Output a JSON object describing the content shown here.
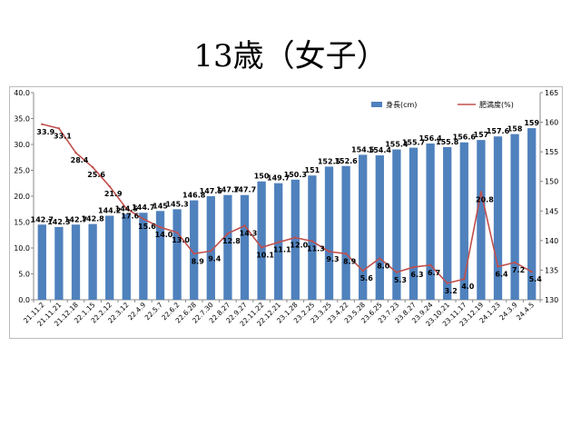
{
  "title": "13歳（女子）",
  "chart_data": {
    "type": "bar+line",
    "categories": [
      "21.11.2",
      "21.11.21",
      "21.12.18",
      "22.1.15",
      "22.2.12",
      "22.3.12",
      "22.4.9",
      "22.5.7",
      "22.6.2",
      "22.6.28",
      "22.7.30",
      "22.8.27",
      "22.9.27",
      "22.11.22",
      "22.12.21",
      "23.1.28",
      "23.2.25",
      "23.3.25",
      "23.4.22",
      "23.5.28",
      "23.6.25",
      "23.7.23",
      "23.8.27",
      "23.9.24",
      "23.10.21",
      "23.11.17",
      "23.12.19",
      "24.1.23",
      "24.3.9",
      "24.4.5"
    ],
    "series": [
      {
        "name": "身長(cm)",
        "type": "bar",
        "axis": "right",
        "color": "#4f81bd",
        "values": [
          142.7,
          142.3,
          142.7,
          142.8,
          144.2,
          144.5,
          144.7,
          145,
          145.3,
          146.8,
          147.5,
          147.7,
          147.7,
          150,
          149.7,
          150.3,
          151,
          152.5,
          152.6,
          154.5,
          154.4,
          155.4,
          155.7,
          156.4,
          155.8,
          156.6,
          157,
          157.6,
          158,
          159
        ],
        "labels": [
          "142.7",
          "142.3",
          "142.7",
          "142.8",
          "144.2",
          "144.5",
          "144.7",
          "145",
          "145.3",
          "146.8",
          "147.5",
          "147.7",
          "147.7",
          "150",
          "149.7",
          "150.3",
          "151",
          "152.5",
          "152.6",
          "154.5",
          "154.4",
          "155.4",
          "155.7",
          "156.4",
          "155.8",
          "156.6",
          "157",
          "157.6",
          "158",
          "159"
        ]
      },
      {
        "name": "肥満度(%)",
        "type": "line",
        "axis": "left",
        "color": "#c0504d",
        "values": [
          33.9,
          33.1,
          28.4,
          25.6,
          21.9,
          17.6,
          15.6,
          14.0,
          13.0,
          8.9,
          9.4,
          12.8,
          14.3,
          10.1,
          11.1,
          12.0,
          11.3,
          9.3,
          8.9,
          5.6,
          8.0,
          5.3,
          6.3,
          6.7,
          3.2,
          4.0,
          20.8,
          6.4,
          7.2,
          5.4
        ],
        "labels": [
          "33.9",
          "33.1",
          "28.4",
          "25.6",
          "21.9",
          "17.6",
          "15.6",
          "14.0",
          "13.0",
          "8.9",
          "9.4",
          "12.8",
          "14.3",
          "10.1",
          "11.1",
          "12.0",
          "11.3",
          "9.3",
          "8.9",
          "5.6",
          "8.0",
          "5.3",
          "6.3",
          "6.7",
          "3.2",
          "4.0",
          "20.8",
          "6.4",
          "7.2",
          "5.4"
        ]
      }
    ],
    "y_left": {
      "min": 0,
      "max": 40,
      "ticks": [
        "0.0",
        "5.0",
        "10.0",
        "15.0",
        "20.0",
        "25.0",
        "30.0",
        "35.0",
        "40.0"
      ]
    },
    "y_right": {
      "min": 130,
      "max": 165,
      "ticks": [
        "130",
        "135",
        "140",
        "145",
        "150",
        "155",
        "160",
        "165"
      ]
    },
    "legend_placement": "top-right",
    "grid": false
  }
}
